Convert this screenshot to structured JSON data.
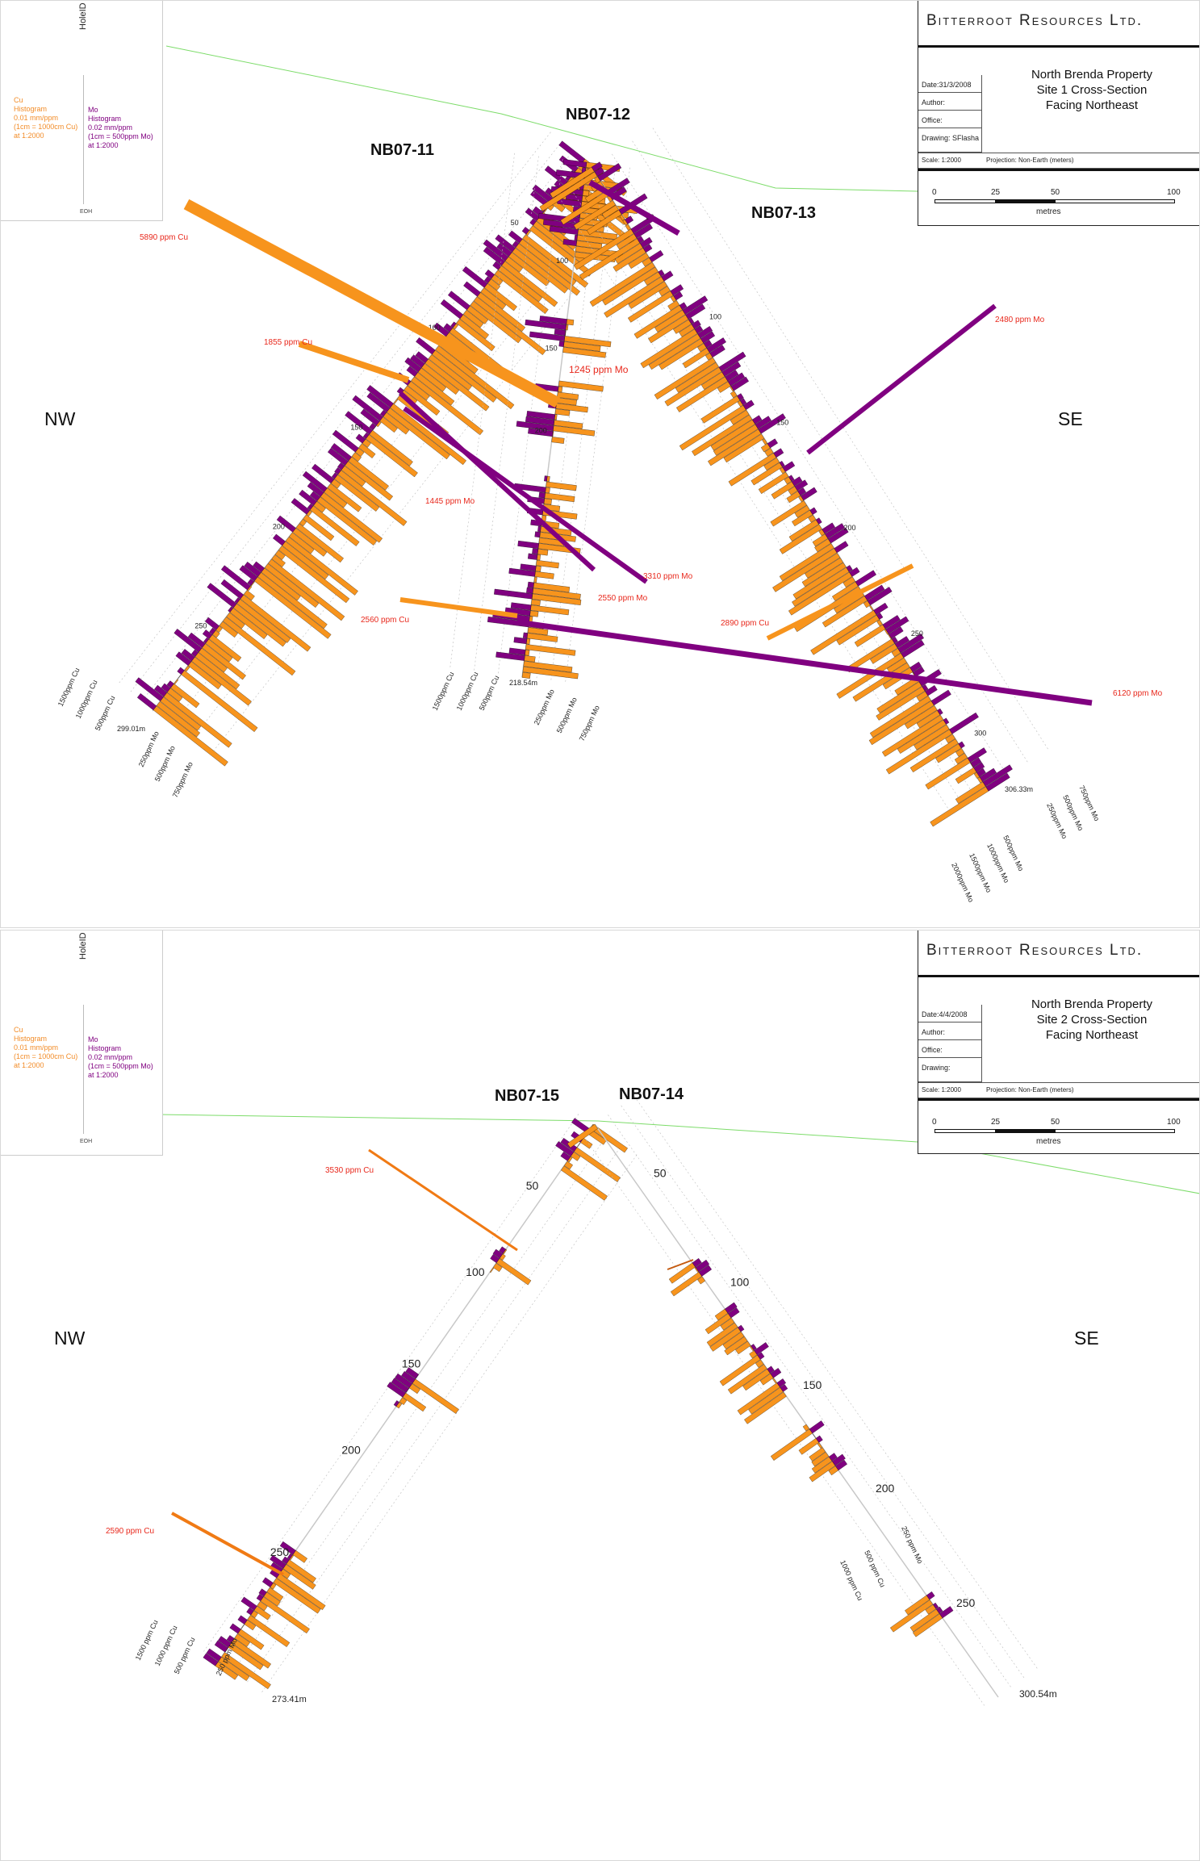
{
  "colors": {
    "cu": "#f7941d",
    "mo": "#800080",
    "annotation": "#e8281c",
    "topography": "#7ddc6a",
    "trace": "#c8c8c8"
  },
  "legend": {
    "hole_id": "HoleID",
    "eoh": "EOH",
    "cu_text": "Cu\nHistogram\n0.01 mm/ppm\n(1cm = 1000cm Cu)\nat 1:2000",
    "mo_text": "Mo\nHistogram\n0.02 mm/ppm\n(1cm = 500ppm Mo)\nat 1:2000"
  },
  "sections": [
    {
      "company": "Bitterroot Resources Ltd.",
      "title": "North Brenda Property\nSite 1 Cross-Section\nFacing Northeast",
      "date": "Date:31/3/2008",
      "author": "Author:",
      "office": "Office:",
      "drawing": "Drawing: SFlasha",
      "scale": "Scale: 1:2000",
      "projection": "Projection: Non-Earth (meters)",
      "scalebar": {
        "ticks": [
          "0",
          "25",
          "50",
          "100"
        ],
        "unit": "metres"
      },
      "nw": "NW",
      "se": "SE",
      "holes": [
        {
          "name": "NB07-11",
          "depth_labels": [
            "50",
            "100",
            "150",
            "200",
            "250"
          ],
          "eoh": "299.01m",
          "cu_scale": [
            "1500ppm Cu",
            "1000ppm Cu",
            "500ppm Cu"
          ],
          "mo_scale": [
            "250ppm Mo",
            "500ppm Mo",
            "750ppm Mo"
          ]
        },
        {
          "name": "NB07-12",
          "depth_labels": [
            "50",
            "100",
            "150",
            "200"
          ],
          "eoh": "218.54m",
          "cu_scale": [
            "1500ppm Cu",
            "1000ppm Cu",
            "500ppm Cu"
          ],
          "mo_scale": [
            "250ppm Mo",
            "500ppm Mo",
            "750ppm Mo"
          ]
        },
        {
          "name": "NB07-13",
          "depth_labels": [
            "50",
            "100",
            "150",
            "200",
            "250",
            "300"
          ],
          "eoh": "306.33m",
          "cu_scale": [
            "2000ppm Mo",
            "1500ppm Mo",
            "1000ppm Mo",
            "500ppm Mo"
          ],
          "mo_scale": [
            "250ppm Mo",
            "500ppm Mo",
            "750ppm Mo"
          ]
        }
      ],
      "annotations": [
        "5890 ppm Cu",
        "1855 ppm Cu",
        "1245 ppm Mo",
        "1445 ppm Mo",
        "3310 ppm Mo",
        "2550 ppm Mo",
        "2560 ppm Cu",
        "2480 ppm Mo",
        "2890 ppm Cu",
        "6120 ppm Mo"
      ]
    },
    {
      "company": "Bitterroot Resources Ltd.",
      "title": "North Brenda Property\nSite 2 Cross-Section\nFacing Northeast",
      "date": "Date:4/4/2008",
      "author": "Author:",
      "office": "Office:",
      "drawing": "Drawing:",
      "scale": "Scale: 1:2000",
      "projection": "Projection: Non-Earth (meters)",
      "scalebar": {
        "ticks": [
          "0",
          "25",
          "50",
          "100"
        ],
        "unit": "metres"
      },
      "nw": "NW",
      "se": "SE",
      "holes": [
        {
          "name": "NB07-15",
          "depth_labels": [
            "50",
            "100",
            "150",
            "200",
            "250"
          ],
          "eoh": "273.41m",
          "cu_scale": [
            "1500 ppm Cu",
            "1000 ppm Cu",
            "500 ppm Cu"
          ],
          "mo_scale": [
            "250 ppm Mo"
          ]
        },
        {
          "name": "NB07-14",
          "depth_labels": [
            "50",
            "100",
            "150",
            "200",
            "250"
          ],
          "eoh": "300.54m",
          "cu_scale": [
            "1000 ppm Cu",
            "500 ppm Cu"
          ],
          "mo_scale": [
            "250 ppm Mo"
          ]
        }
      ],
      "annotations": [
        "3530 ppm Cu",
        "2590 ppm Cu"
      ]
    }
  ]
}
